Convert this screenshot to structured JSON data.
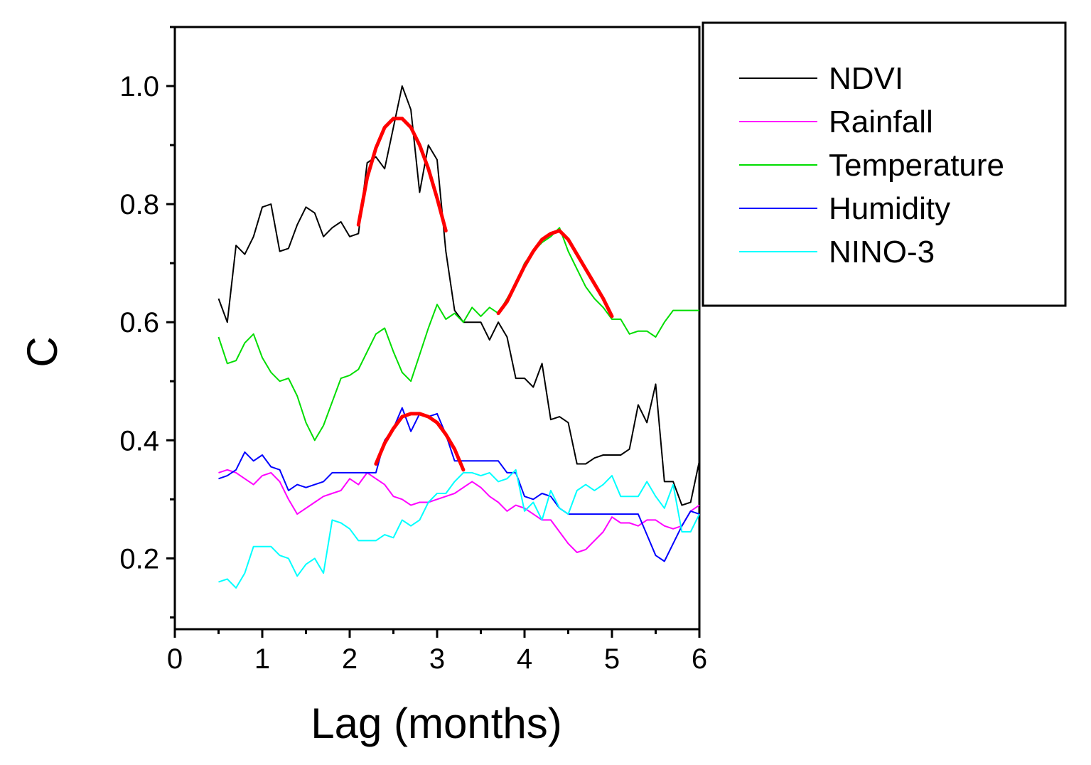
{
  "chart_data": {
    "type": "line",
    "title": "",
    "xlabel": "Lag (months)",
    "ylabel": "C",
    "xlim": [
      0,
      6
    ],
    "ylim": [
      0.08,
      1.1
    ],
    "xticks": [
      0,
      1,
      2,
      3,
      4,
      5,
      6
    ],
    "xtick_labels": [
      "0",
      "1",
      "2",
      "3",
      "4",
      "5",
      "6"
    ],
    "yticks": [
      0.2,
      0.4,
      0.6,
      0.8,
      1.0
    ],
    "ytick_labels": [
      "0.2",
      "0.4",
      "0.6",
      "0.8",
      "1.0"
    ],
    "grid": false,
    "legend_position": "right",
    "series": [
      {
        "name": "NDVI",
        "color": "#000000",
        "x": [
          0.5,
          0.6,
          0.7,
          0.8,
          0.9,
          1.0,
          1.1,
          1.2,
          1.3,
          1.4,
          1.5,
          1.6,
          1.7,
          1.8,
          1.9,
          2.0,
          2.1,
          2.2,
          2.3,
          2.4,
          2.5,
          2.6,
          2.7,
          2.8,
          2.9,
          3.0,
          3.1,
          3.2,
          3.3,
          3.4,
          3.5,
          3.6,
          3.7,
          3.8,
          3.9,
          4.0,
          4.1,
          4.2,
          4.3,
          4.4,
          4.5,
          4.6,
          4.7,
          4.8,
          4.9,
          5.0,
          5.1,
          5.2,
          5.3,
          5.4,
          5.5,
          5.6,
          5.7,
          5.8,
          5.9,
          6.0
        ],
        "y": [
          0.64,
          0.6,
          0.73,
          0.715,
          0.745,
          0.795,
          0.8,
          0.72,
          0.725,
          0.765,
          0.795,
          0.785,
          0.745,
          0.76,
          0.77,
          0.745,
          0.75,
          0.87,
          0.88,
          0.86,
          0.93,
          1.0,
          0.96,
          0.82,
          0.9,
          0.875,
          0.72,
          0.62,
          0.6,
          0.6,
          0.6,
          0.57,
          0.6,
          0.575,
          0.505,
          0.505,
          0.49,
          0.53,
          0.435,
          0.44,
          0.43,
          0.36,
          0.36,
          0.37,
          0.375,
          0.375,
          0.375,
          0.385,
          0.46,
          0.43,
          0.495,
          0.33,
          0.33,
          0.29,
          0.295,
          0.365
        ]
      },
      {
        "name": "Rainfall",
        "color": "#ff00ff",
        "x": [
          0.5,
          0.6,
          0.7,
          0.8,
          0.9,
          1.0,
          1.1,
          1.2,
          1.3,
          1.4,
          1.5,
          1.6,
          1.7,
          1.8,
          1.9,
          2.0,
          2.1,
          2.2,
          2.3,
          2.4,
          2.5,
          2.6,
          2.7,
          2.8,
          2.9,
          3.0,
          3.1,
          3.2,
          3.3,
          3.4,
          3.5,
          3.6,
          3.7,
          3.8,
          3.9,
          4.0,
          4.1,
          4.2,
          4.3,
          4.4,
          4.5,
          4.6,
          4.7,
          4.8,
          4.9,
          5.0,
          5.1,
          5.2,
          5.3,
          5.4,
          5.5,
          5.6,
          5.7,
          5.8,
          5.9,
          6.0
        ],
        "y": [
          0.345,
          0.35,
          0.345,
          0.335,
          0.325,
          0.34,
          0.345,
          0.33,
          0.3,
          0.275,
          0.285,
          0.295,
          0.305,
          0.31,
          0.315,
          0.335,
          0.325,
          0.345,
          0.335,
          0.325,
          0.305,
          0.3,
          0.29,
          0.295,
          0.295,
          0.3,
          0.305,
          0.31,
          0.32,
          0.33,
          0.32,
          0.305,
          0.295,
          0.28,
          0.29,
          0.285,
          0.275,
          0.265,
          0.265,
          0.245,
          0.225,
          0.21,
          0.215,
          0.23,
          0.245,
          0.27,
          0.26,
          0.26,
          0.255,
          0.265,
          0.265,
          0.255,
          0.25,
          0.255,
          0.28,
          0.29
        ]
      },
      {
        "name": "Temperature",
        "color": "#00dd00",
        "x": [
          0.5,
          0.6,
          0.7,
          0.8,
          0.9,
          1.0,
          1.1,
          1.2,
          1.3,
          1.4,
          1.5,
          1.6,
          1.7,
          1.8,
          1.9,
          2.0,
          2.1,
          2.2,
          2.3,
          2.4,
          2.5,
          2.6,
          2.7,
          2.8,
          2.9,
          3.0,
          3.1,
          3.2,
          3.3,
          3.4,
          3.5,
          3.6,
          3.7,
          3.8,
          3.9,
          4.0,
          4.1,
          4.2,
          4.3,
          4.4,
          4.5,
          4.6,
          4.7,
          4.8,
          4.9,
          5.0,
          5.1,
          5.2,
          5.3,
          5.4,
          5.5,
          5.6,
          5.7,
          5.8,
          5.9,
          6.0
        ],
        "y": [
          0.575,
          0.53,
          0.535,
          0.565,
          0.58,
          0.54,
          0.515,
          0.5,
          0.505,
          0.475,
          0.43,
          0.4,
          0.425,
          0.465,
          0.505,
          0.51,
          0.52,
          0.55,
          0.58,
          0.59,
          0.55,
          0.515,
          0.5,
          0.545,
          0.59,
          0.63,
          0.605,
          0.615,
          0.6,
          0.625,
          0.61,
          0.625,
          0.615,
          0.64,
          0.665,
          0.7,
          0.72,
          0.735,
          0.745,
          0.76,
          0.72,
          0.69,
          0.66,
          0.64,
          0.625,
          0.605,
          0.605,
          0.58,
          0.585,
          0.585,
          0.575,
          0.6,
          0.62,
          0.62,
          0.62,
          0.62
        ]
      },
      {
        "name": "Humidity",
        "color": "#0000ff",
        "x": [
          0.5,
          0.6,
          0.7,
          0.8,
          0.9,
          1.0,
          1.1,
          1.2,
          1.3,
          1.4,
          1.5,
          1.6,
          1.7,
          1.8,
          1.9,
          2.0,
          2.1,
          2.2,
          2.3,
          2.4,
          2.5,
          2.6,
          2.7,
          2.8,
          2.9,
          3.0,
          3.1,
          3.2,
          3.3,
          3.4,
          3.5,
          3.6,
          3.7,
          3.8,
          3.9,
          4.0,
          4.1,
          4.2,
          4.3,
          4.4,
          4.5,
          4.6,
          4.7,
          4.8,
          4.9,
          5.0,
          5.1,
          5.2,
          5.3,
          5.4,
          5.5,
          5.6,
          5.7,
          5.8,
          5.9,
          6.0
        ],
        "y": [
          0.335,
          0.34,
          0.35,
          0.38,
          0.365,
          0.375,
          0.355,
          0.35,
          0.315,
          0.325,
          0.32,
          0.325,
          0.33,
          0.345,
          0.345,
          0.345,
          0.345,
          0.345,
          0.345,
          0.4,
          0.42,
          0.455,
          0.415,
          0.445,
          0.44,
          0.445,
          0.41,
          0.365,
          0.365,
          0.365,
          0.365,
          0.365,
          0.365,
          0.345,
          0.345,
          0.305,
          0.3,
          0.31,
          0.305,
          0.285,
          0.275,
          0.275,
          0.275,
          0.275,
          0.275,
          0.275,
          0.275,
          0.275,
          0.275,
          0.24,
          0.205,
          0.195,
          0.225,
          0.255,
          0.28,
          0.275
        ]
      },
      {
        "name": "NINO-3",
        "color": "#00ffff",
        "x": [
          0.5,
          0.6,
          0.7,
          0.8,
          0.9,
          1.0,
          1.1,
          1.2,
          1.3,
          1.4,
          1.5,
          1.6,
          1.7,
          1.8,
          1.9,
          2.0,
          2.1,
          2.2,
          2.3,
          2.4,
          2.5,
          2.6,
          2.7,
          2.8,
          2.9,
          3.0,
          3.1,
          3.2,
          3.3,
          3.4,
          3.5,
          3.6,
          3.7,
          3.8,
          3.9,
          4.0,
          4.1,
          4.2,
          4.3,
          4.4,
          4.5,
          4.6,
          4.7,
          4.8,
          4.9,
          5.0,
          5.1,
          5.2,
          5.3,
          5.4,
          5.5,
          5.6,
          5.7,
          5.8,
          5.9,
          6.0
        ],
        "y": [
          0.16,
          0.165,
          0.15,
          0.175,
          0.22,
          0.22,
          0.22,
          0.205,
          0.2,
          0.17,
          0.19,
          0.2,
          0.175,
          0.265,
          0.26,
          0.25,
          0.23,
          0.23,
          0.23,
          0.24,
          0.235,
          0.265,
          0.255,
          0.265,
          0.295,
          0.31,
          0.31,
          0.33,
          0.345,
          0.345,
          0.34,
          0.345,
          0.33,
          0.335,
          0.35,
          0.28,
          0.295,
          0.265,
          0.315,
          0.285,
          0.275,
          0.315,
          0.325,
          0.315,
          0.325,
          0.34,
          0.305,
          0.305,
          0.305,
          0.33,
          0.305,
          0.285,
          0.325,
          0.245,
          0.245,
          0.275
        ]
      }
    ],
    "fitted_curves": [
      {
        "color": "#ff0000",
        "x": [
          2.1,
          2.2,
          2.3,
          2.4,
          2.5,
          2.6,
          2.7,
          2.8,
          2.9,
          3.0,
          3.1
        ],
        "y": [
          0.765,
          0.845,
          0.895,
          0.93,
          0.945,
          0.945,
          0.93,
          0.9,
          0.86,
          0.81,
          0.755
        ]
      },
      {
        "color": "#ff0000",
        "x": [
          3.7,
          3.8,
          3.9,
          4.0,
          4.1,
          4.2,
          4.3,
          4.4,
          4.5,
          4.6,
          4.7,
          4.8,
          4.9,
          5.0
        ],
        "y": [
          0.615,
          0.635,
          0.665,
          0.695,
          0.72,
          0.74,
          0.75,
          0.755,
          0.74,
          0.715,
          0.69,
          0.665,
          0.64,
          0.61
        ]
      },
      {
        "color": "#ff0000",
        "x": [
          2.3,
          2.4,
          2.5,
          2.6,
          2.7,
          2.8,
          2.9,
          3.0,
          3.1,
          3.2,
          3.3
        ],
        "y": [
          0.36,
          0.395,
          0.42,
          0.44,
          0.445,
          0.445,
          0.44,
          0.43,
          0.41,
          0.385,
          0.35
        ]
      }
    ]
  }
}
